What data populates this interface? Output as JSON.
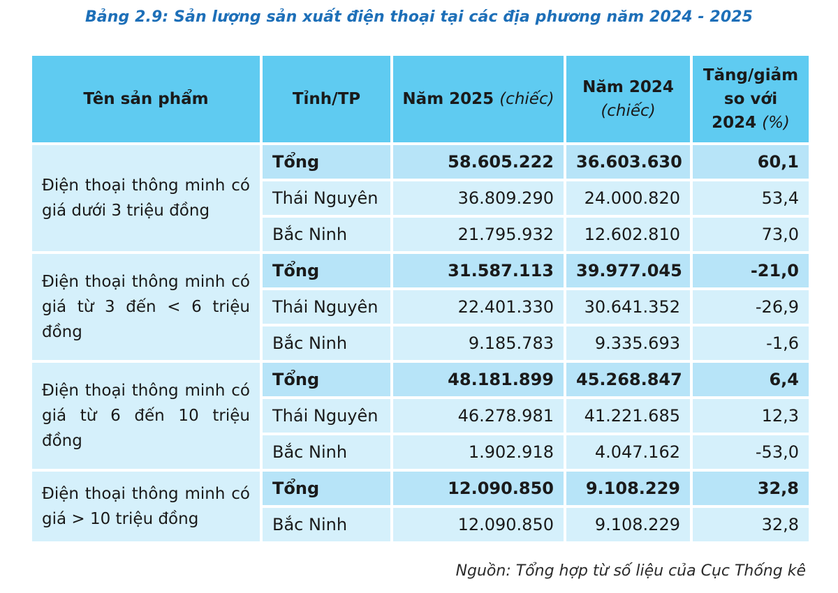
{
  "title": "Bảng 2.9: Sản lượng sản xuất điện thoại tại các địa phương năm 2024 - 2025",
  "headers": {
    "product": "Tên sản phẩm",
    "province": "Tỉnh/TP",
    "y2025": "Năm 2025",
    "y2025_unit": "(chiếc)",
    "y2024": "Năm 2024",
    "y2024_unit": "(chiếc)",
    "change_line1": "Tăng/giảm",
    "change_line2": "so với",
    "change_line3": "2024",
    "change_unit": "(%)"
  },
  "groups": [
    {
      "product": "Điện thoại thông minh có giá dưới 3 triệu đồng",
      "rows": [
        {
          "province": "Tổng",
          "y2025": "58.605.222",
          "y2024": "36.603.630",
          "change": "60,1"
        },
        {
          "province": "Thái Nguyên",
          "y2025": "36.809.290",
          "y2024": "24.000.820",
          "change": "53,4"
        },
        {
          "province": "Bắc Ninh",
          "y2025": "21.795.932",
          "y2024": "12.602.810",
          "change": "73,0"
        }
      ]
    },
    {
      "product": "Điện thoại thông minh có giá từ 3 đến < 6 triệu đồng",
      "rows": [
        {
          "province": "Tổng",
          "y2025": "31.587.113",
          "y2024": "39.977.045",
          "change": "-21,0"
        },
        {
          "province": "Thái Nguyên",
          "y2025": "22.401.330",
          "y2024": "30.641.352",
          "change": "-26,9"
        },
        {
          "province": "Bắc Ninh",
          "y2025": "9.185.783",
          "y2024": "9.335.693",
          "change": "-1,6"
        }
      ]
    },
    {
      "product": "Điện thoại thông minh có giá từ 6 đến 10 triệu đồng",
      "rows": [
        {
          "province": "Tổng",
          "y2025": "48.181.899",
          "y2024": "45.268.847",
          "change": "6,4"
        },
        {
          "province": "Thái Nguyên",
          "y2025": "46.278.981",
          "y2024": "41.221.685",
          "change": "12,3"
        },
        {
          "province": "Bắc Ninh",
          "y2025": "1.902.918",
          "y2024": "4.047.162",
          "change": "-53,0"
        }
      ]
    },
    {
      "product": "Điện thoại thông minh có giá > 10 triệu đồng",
      "rows": [
        {
          "province": "Tổng",
          "y2025": "12.090.850",
          "y2024": "9.108.229",
          "change": "32,8"
        },
        {
          "province": "Bắc Ninh",
          "y2025": "12.090.850",
          "y2024": "9.108.229",
          "change": "32,8"
        }
      ]
    }
  ],
  "source": "Nguồn: Tổng hợp từ số liệu của Cục Thống kê"
}
